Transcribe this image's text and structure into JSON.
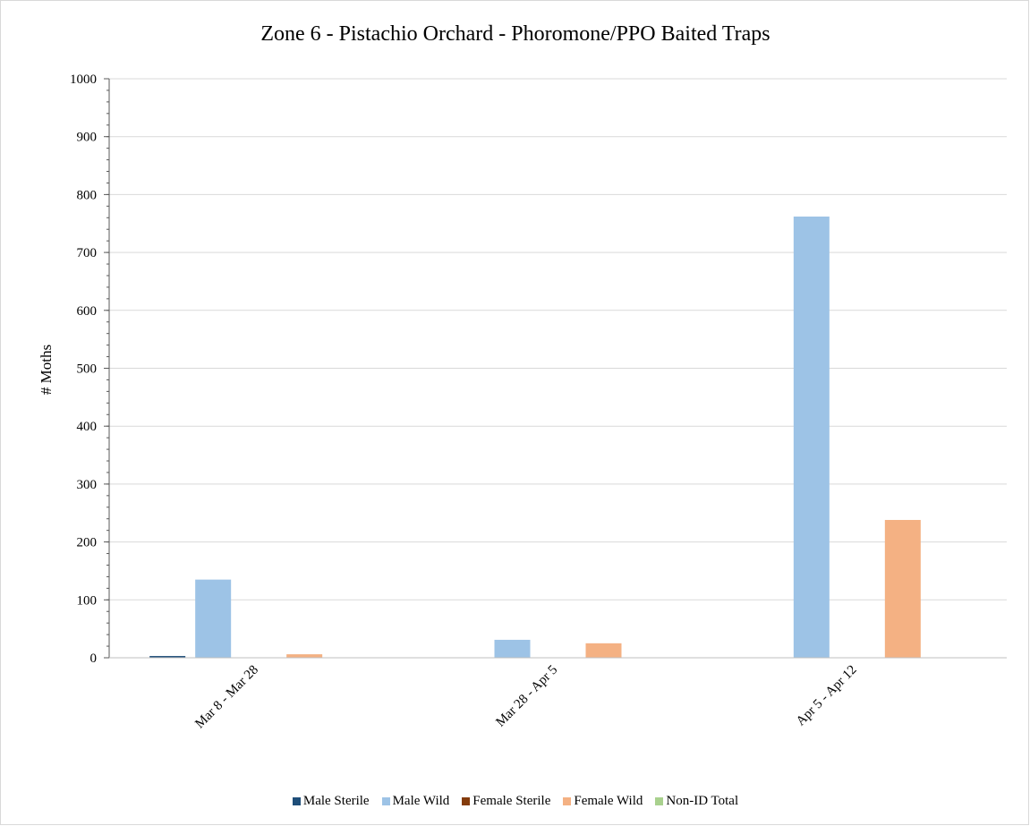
{
  "chart_data": {
    "type": "bar",
    "title": "Zone 6 - Pistachio Orchard - Phoromone/PPO Baited Traps",
    "xlabel": "",
    "ylabel": "# Moths",
    "ylim": [
      0,
      1000
    ],
    "yticks": [
      0,
      100,
      200,
      300,
      400,
      500,
      600,
      700,
      800,
      900,
      1000
    ],
    "grid": true,
    "legend_position": "bottom",
    "categories": [
      "Mar 8 - Mar 28",
      "Mar 28 - Apr 5",
      "Apr 5 - Apr 12"
    ],
    "series": [
      {
        "name": "Male Sterile",
        "color": "#1f4e79",
        "values": [
          3,
          0,
          0
        ]
      },
      {
        "name": "Male Wild",
        "color": "#9dc3e6",
        "values": [
          135,
          31,
          762
        ]
      },
      {
        "name": "Female Sterile",
        "color": "#843c0c",
        "values": [
          0,
          0,
          0
        ]
      },
      {
        "name": "Female Wild",
        "color": "#f4b183",
        "values": [
          6,
          25,
          238
        ]
      },
      {
        "name": "Non-ID Total",
        "color": "#a9d18e",
        "values": [
          0,
          0,
          0
        ]
      }
    ]
  }
}
